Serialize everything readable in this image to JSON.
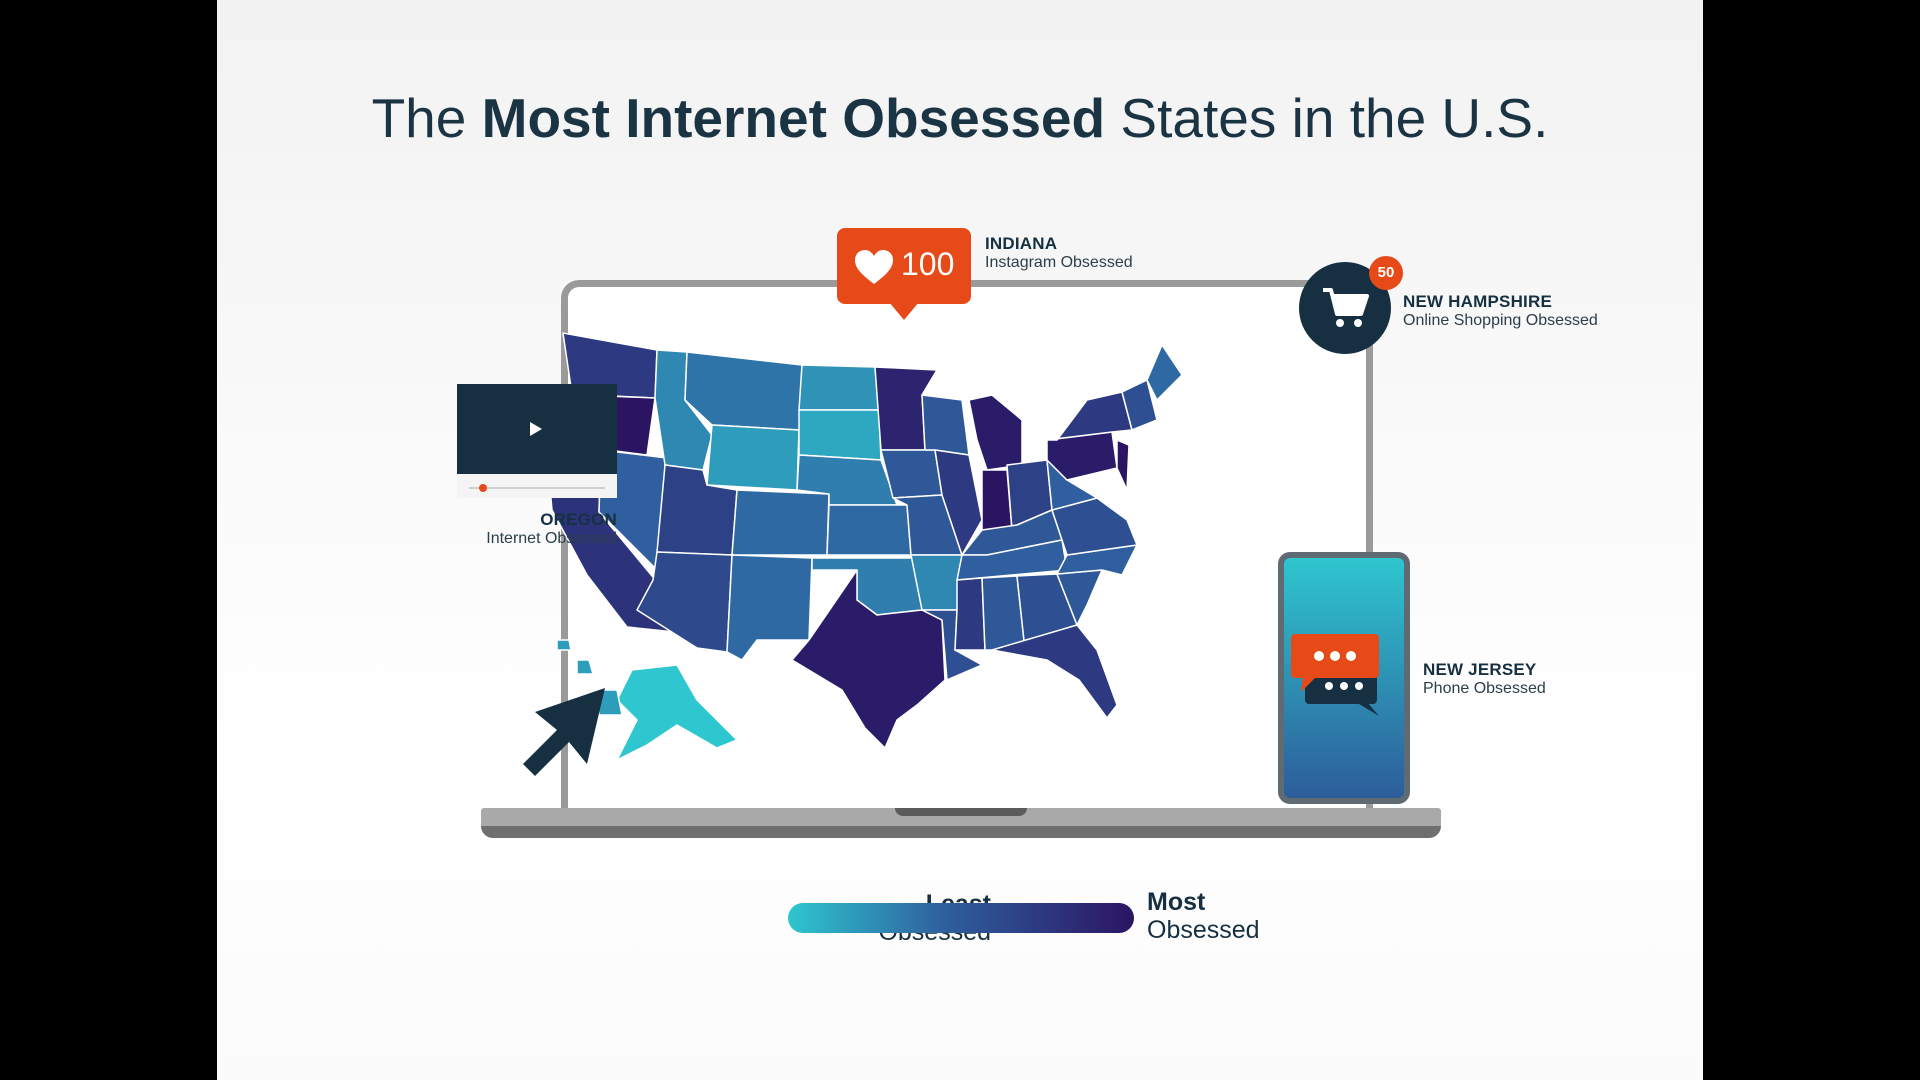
{
  "title": {
    "part1": "The ",
    "bold": "Most Internet Obsessed",
    "part2": " States in the U.S."
  },
  "callouts": {
    "indiana": {
      "count": "100",
      "name": "INDIANA",
      "sub": "Instagram Obsessed",
      "icon": "heart-icon"
    },
    "new_hampshire": {
      "badge": "50",
      "name": "NEW HAMPSHIRE",
      "sub": "Online Shopping Obsessed",
      "icon": "cart-icon"
    },
    "oregon": {
      "name": "OREGON",
      "sub": "Internet Obsessed",
      "icon": "video-player-icon"
    },
    "new_jersey": {
      "name": "NEW JERSEY",
      "sub": "Phone Obsessed",
      "icon": "chat-bubbles-icon"
    }
  },
  "legend": {
    "least_bold": "Least",
    "least_sub": "Obsessed",
    "most_bold": "Most",
    "most_sub": "Obsessed",
    "color_least": "#2ec6cf",
    "color_most": "#2b1563"
  },
  "colors": {
    "accent": "#e64a19",
    "navy": "#163042"
  },
  "map": {
    "states": [
      {
        "id": "WA",
        "level": 0.75
      },
      {
        "id": "OR",
        "level": 1.0
      },
      {
        "id": "CA",
        "level": 0.8
      },
      {
        "id": "NV",
        "level": 0.5
      },
      {
        "id": "ID",
        "level": 0.3
      },
      {
        "id": "MT",
        "level": 0.4
      },
      {
        "id": "WY",
        "level": 0.2
      },
      {
        "id": "UT",
        "level": 0.7
      },
      {
        "id": "AZ",
        "level": 0.65
      },
      {
        "id": "CO",
        "level": 0.45
      },
      {
        "id": "NM",
        "level": 0.45
      },
      {
        "id": "ND",
        "level": 0.25
      },
      {
        "id": "SD",
        "level": 0.15
      },
      {
        "id": "NE",
        "level": 0.35
      },
      {
        "id": "KS",
        "level": 0.45
      },
      {
        "id": "OK",
        "level": 0.35
      },
      {
        "id": "TX",
        "level": 0.95
      },
      {
        "id": "MN",
        "level": 0.9
      },
      {
        "id": "IA",
        "level": 0.55
      },
      {
        "id": "MO",
        "level": 0.55
      },
      {
        "id": "AR",
        "level": 0.3
      },
      {
        "id": "LA",
        "level": 0.6
      },
      {
        "id": "WI",
        "level": 0.55
      },
      {
        "id": "IL",
        "level": 0.75
      },
      {
        "id": "MI",
        "level": 0.95
      },
      {
        "id": "IN",
        "level": 1.0
      },
      {
        "id": "OH",
        "level": 0.7
      },
      {
        "id": "KY",
        "level": 0.55
      },
      {
        "id": "TN",
        "level": 0.5
      },
      {
        "id": "MS",
        "level": 0.75
      },
      {
        "id": "AL",
        "level": 0.55
      },
      {
        "id": "GA",
        "level": 0.6
      },
      {
        "id": "FL",
        "level": 0.75
      },
      {
        "id": "SC",
        "level": 0.55
      },
      {
        "id": "NC",
        "level": 0.5
      },
      {
        "id": "VA",
        "level": 0.6
      },
      {
        "id": "WV",
        "level": 0.5
      },
      {
        "id": "PA",
        "level": 0.95
      },
      {
        "id": "NY",
        "level": 0.75
      },
      {
        "id": "NJ",
        "level": 1.0
      },
      {
        "id": "NE-states",
        "level": 0.6
      },
      {
        "id": "ME",
        "level": 0.45
      },
      {
        "id": "AK",
        "level": 0.0
      },
      {
        "id": "HI",
        "level": 0.2
      }
    ]
  }
}
